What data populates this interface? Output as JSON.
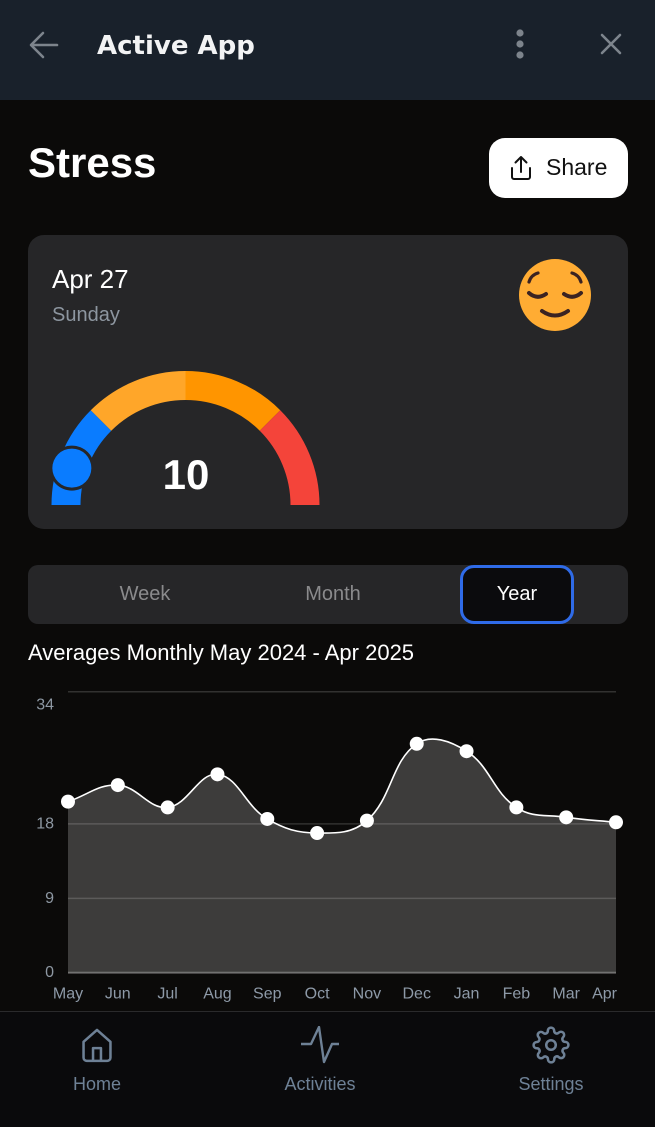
{
  "header": {
    "title": "Active App",
    "back_icon": "arrow-left-icon",
    "menu_icon": "kebab-menu-icon",
    "close_icon": "close-icon"
  },
  "page": {
    "title": "Stress",
    "share_label": "Share",
    "share_icon": "share-upload-icon"
  },
  "summary_card": {
    "date": "Apr 27",
    "weekday": "Sunday",
    "mood_icon": "relieved-face-emoji",
    "gauge": {
      "value": 10,
      "value_label": "10",
      "range": [
        0,
        100
      ],
      "segments": [
        {
          "from": 0,
          "to": 25,
          "color": "#0A7CFF"
        },
        {
          "from": 25,
          "to": 50,
          "color": "#FFA629"
        },
        {
          "from": 50,
          "to": 75,
          "color": "#FF9500"
        },
        {
          "from": 75,
          "to": 100,
          "color": "#F4443A"
        }
      ],
      "knob_color": "#0A7CFF"
    }
  },
  "range_tabs": {
    "items": [
      {
        "label": "Week",
        "selected": false
      },
      {
        "label": "Month",
        "selected": false
      },
      {
        "label": "Year",
        "selected": true
      }
    ],
    "accent": "#2F6BE8"
  },
  "chart_title": "Averages Monthly May 2024 - Apr 2025",
  "chart_data": {
    "type": "area",
    "title": "Averages Monthly May 2024 - Apr 2025",
    "categories": [
      "May",
      "Jun",
      "Jul",
      "Aug",
      "Sep",
      "Oct",
      "Nov",
      "Dec",
      "Jan",
      "Feb",
      "Mar",
      "Apr"
    ],
    "values": [
      20.7,
      22.7,
      20.0,
      24.0,
      18.6,
      16.9,
      18.4,
      27.7,
      26.8,
      20.0,
      18.8,
      18.2
    ],
    "xlabel": "",
    "ylabel": "",
    "yticks": [
      0,
      9,
      18,
      34
    ],
    "ylim": [
      0,
      34
    ],
    "grid": true,
    "legend": null,
    "colors": {
      "line": "#FFFFFF",
      "fill": "#3D3C3B",
      "point": "#FFFFFF"
    }
  },
  "bottom_nav": {
    "items": [
      {
        "label": "Home",
        "icon": "home-icon"
      },
      {
        "label": "Activities",
        "icon": "activity-pulse-icon"
      },
      {
        "label": "Settings",
        "icon": "gear-icon"
      }
    ]
  }
}
